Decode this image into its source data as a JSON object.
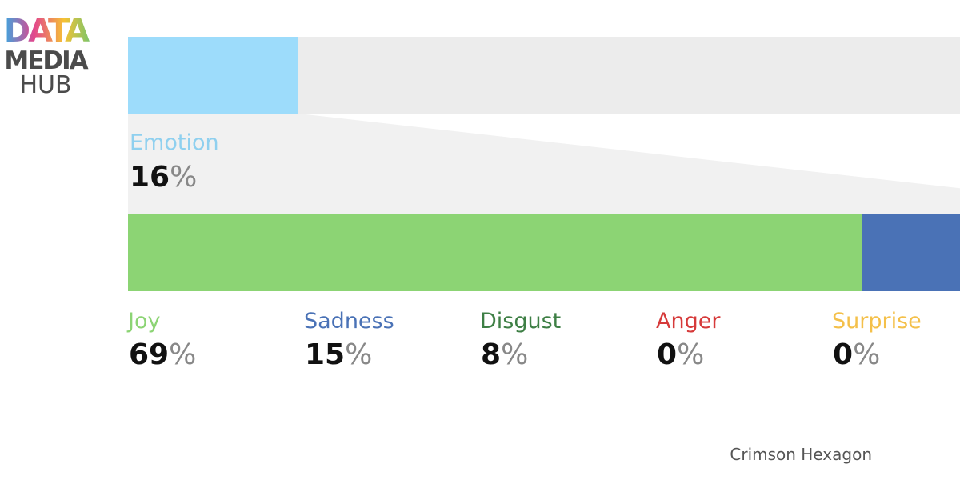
{
  "logo": {
    "lines": [
      "DATA",
      "MEDIA",
      "HUB"
    ]
  },
  "chart_data": {
    "type": "funnel-bar",
    "overall": {
      "name": "Emotion",
      "value": 16,
      "color": "#9ddcfb",
      "label_color": "#8fd0ef"
    },
    "unit": "%",
    "xlim": [
      0,
      100
    ],
    "series": [
      {
        "name": "Joy",
        "color": "#8cd474",
        "values": [
          69
        ]
      },
      {
        "name": "Sadness",
        "color": "#4a72b6",
        "values": [
          15
        ]
      },
      {
        "name": "Disgust",
        "color": "#3e7f45",
        "values": [
          8
        ]
      },
      {
        "name": "Anger",
        "color": "#d63a3a",
        "values": [
          0
        ]
      },
      {
        "name": "Surprise",
        "color": "#f4c04a",
        "values": [
          0
        ]
      }
    ],
    "source": "Crimson Hexagon"
  }
}
